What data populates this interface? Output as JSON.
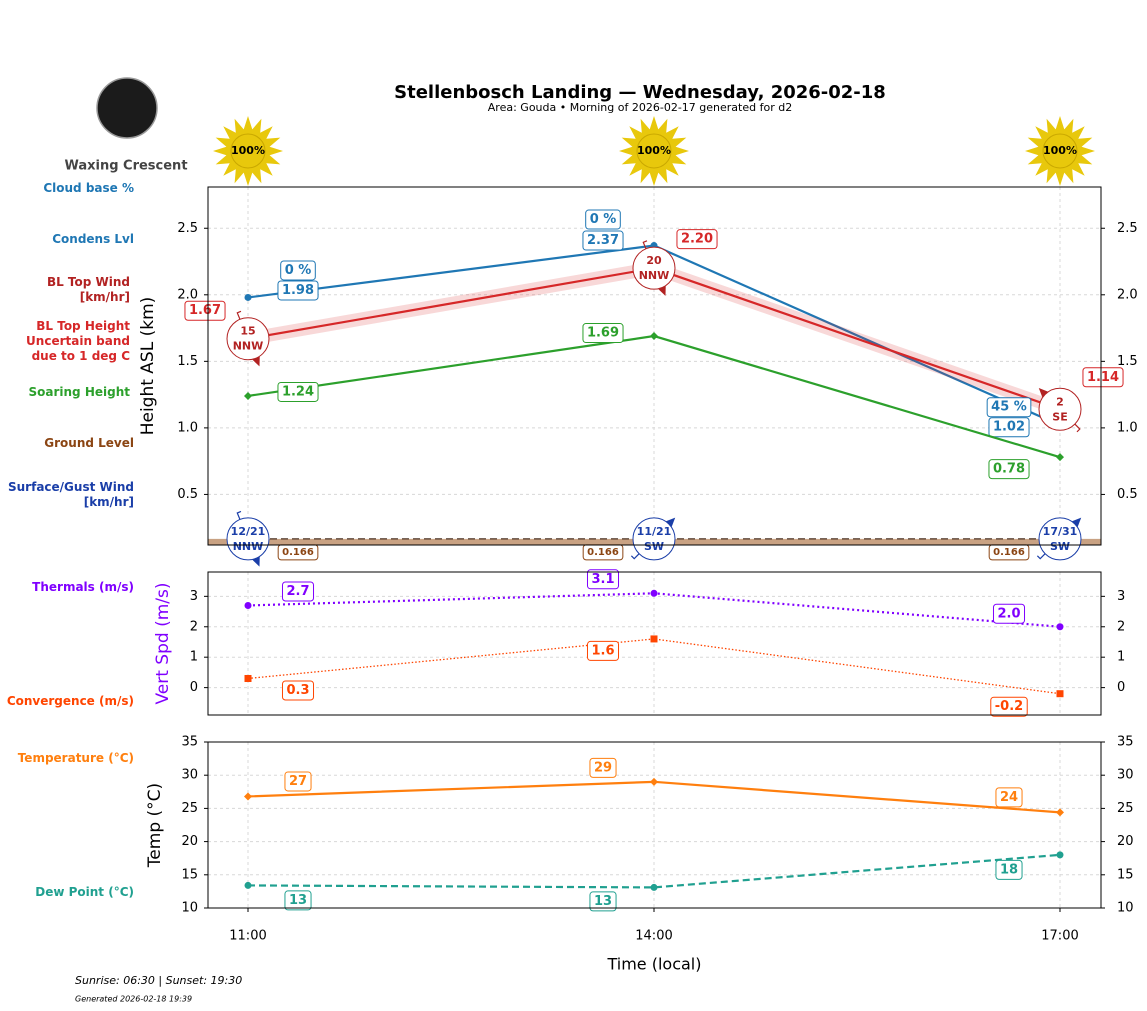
{
  "title": "Stellenbosch Landing — Wednesday, 2026-02-18",
  "subtitle": "Area: Gouda • Morning of 2026-02-17 generated for d2",
  "moon_phase": "Waxing Crescent",
  "sun_times": "Sunrise: 06:30 | Sunset: 19:30",
  "generated": "Generated 2026-02-18 19:39",
  "chart_data": [
    {
      "type": "line",
      "ylabel": "Height ASL (km)",
      "ylim": [
        0.12,
        2.81
      ],
      "yticks": [
        0.5,
        {
          "value": 1.0,
          "label": "1.0"
        },
        1.5,
        {
          "value": 2.0,
          "label": "2.0"
        },
        2.5
      ],
      "grid": true,
      "sunshine": {
        "values": [
          100,
          100,
          100
        ],
        "value_labels": [
          "100%",
          "100%",
          "100%"
        ],
        "color": "#e8c80c"
      },
      "cloud_base": {
        "name": "Cloud base %",
        "color": "#1f77b4",
        "values": [
          0,
          0,
          45
        ],
        "value_labels": [
          "0 %",
          "0 %",
          "45 %"
        ]
      },
      "series": [
        {
          "name": "Condens Lvl",
          "color": "#1f77b4",
          "values": [
            1.98,
            2.37,
            1.02
          ],
          "marker": "circle",
          "style": "solid"
        },
        {
          "name": "BL Top Height",
          "band_label": "Uncertain band due to 1 deg C",
          "color": "#d62728",
          "values": [
            1.67,
            2.2,
            1.14
          ],
          "value_labels": [
            "1.67",
            "2.20",
            "1.14"
          ],
          "errors": [
            0.05,
            0.05,
            0.05
          ],
          "style": "solid",
          "wind": {
            "name": "BL Top Wind [km/hr]",
            "color": "#b22222",
            "speeds": [
              15,
              20,
              2
            ],
            "directions": [
              "NNW",
              "NNW",
              "SE"
            ],
            "direction_deg": [
              337.5,
              337.5,
              135
            ]
          }
        },
        {
          "name": "Soaring Height",
          "color": "#2ca02c",
          "values": [
            1.24,
            1.69,
            0.78
          ],
          "marker": "diamond",
          "style": "solid"
        },
        {
          "name": "Ground Level",
          "color": "#8b4513",
          "values": [
            0.166,
            0.166,
            0.166
          ],
          "fill": "#c9a283",
          "style": "dashed",
          "wind": {
            "name": "Surface/Gust Wind [km/hr]",
            "color": "#1a3ea8",
            "speeds": [
              12,
              11,
              17
            ],
            "gusts": [
              21,
              21,
              31
            ],
            "value_labels": [
              "12/21",
              "11/21",
              "17/31"
            ],
            "directions": [
              "NNW",
              "SW",
              "SW"
            ],
            "direction_deg": [
              337.5,
              225,
              225
            ]
          }
        }
      ]
    },
    {
      "type": "line",
      "ylabel": "Vert Spd (m/s)",
      "ylabel_color": "#8000ff",
      "ylim": [
        -0.9,
        3.8
      ],
      "yticks": [
        0,
        1,
        2,
        3
      ],
      "grid": true,
      "series": [
        {
          "name": "Thermals (m/s)",
          "color": "#8000ff",
          "values": [
            2.7,
            3.1,
            2.0
          ],
          "value_labels": [
            "2.7",
            "3.1",
            "2.0"
          ],
          "marker": "circle",
          "style": "dotted"
        },
        {
          "name": "Convergence (m/s)",
          "color": "#ff4500",
          "values": [
            0.3,
            1.6,
            -0.2
          ],
          "marker": "square",
          "style": "finedotted"
        }
      ]
    },
    {
      "type": "line",
      "ylabel": "Temp (°C)",
      "xlabel": "Time (local)",
      "categories": [
        "11:00",
        "14:00",
        "17:00"
      ],
      "ylim": [
        10,
        35
      ],
      "yticks": [
        10,
        15,
        20,
        25,
        30,
        35
      ],
      "grid": true,
      "series": [
        {
          "name": "Temperature (°C)",
          "color": "#ff7f0e",
          "values": [
            26.8,
            29.0,
            24.4
          ],
          "value_labels": [
            "27",
            "29",
            "24"
          ],
          "marker": "diamond",
          "style": "solid"
        },
        {
          "name": "Dew Point (°C)",
          "color": "#20a090",
          "values": [
            13.4,
            13.1,
            18.0
          ],
          "value_labels": [
            "13",
            "13",
            "18"
          ],
          "marker": "circle",
          "style": "dashed"
        }
      ]
    }
  ]
}
